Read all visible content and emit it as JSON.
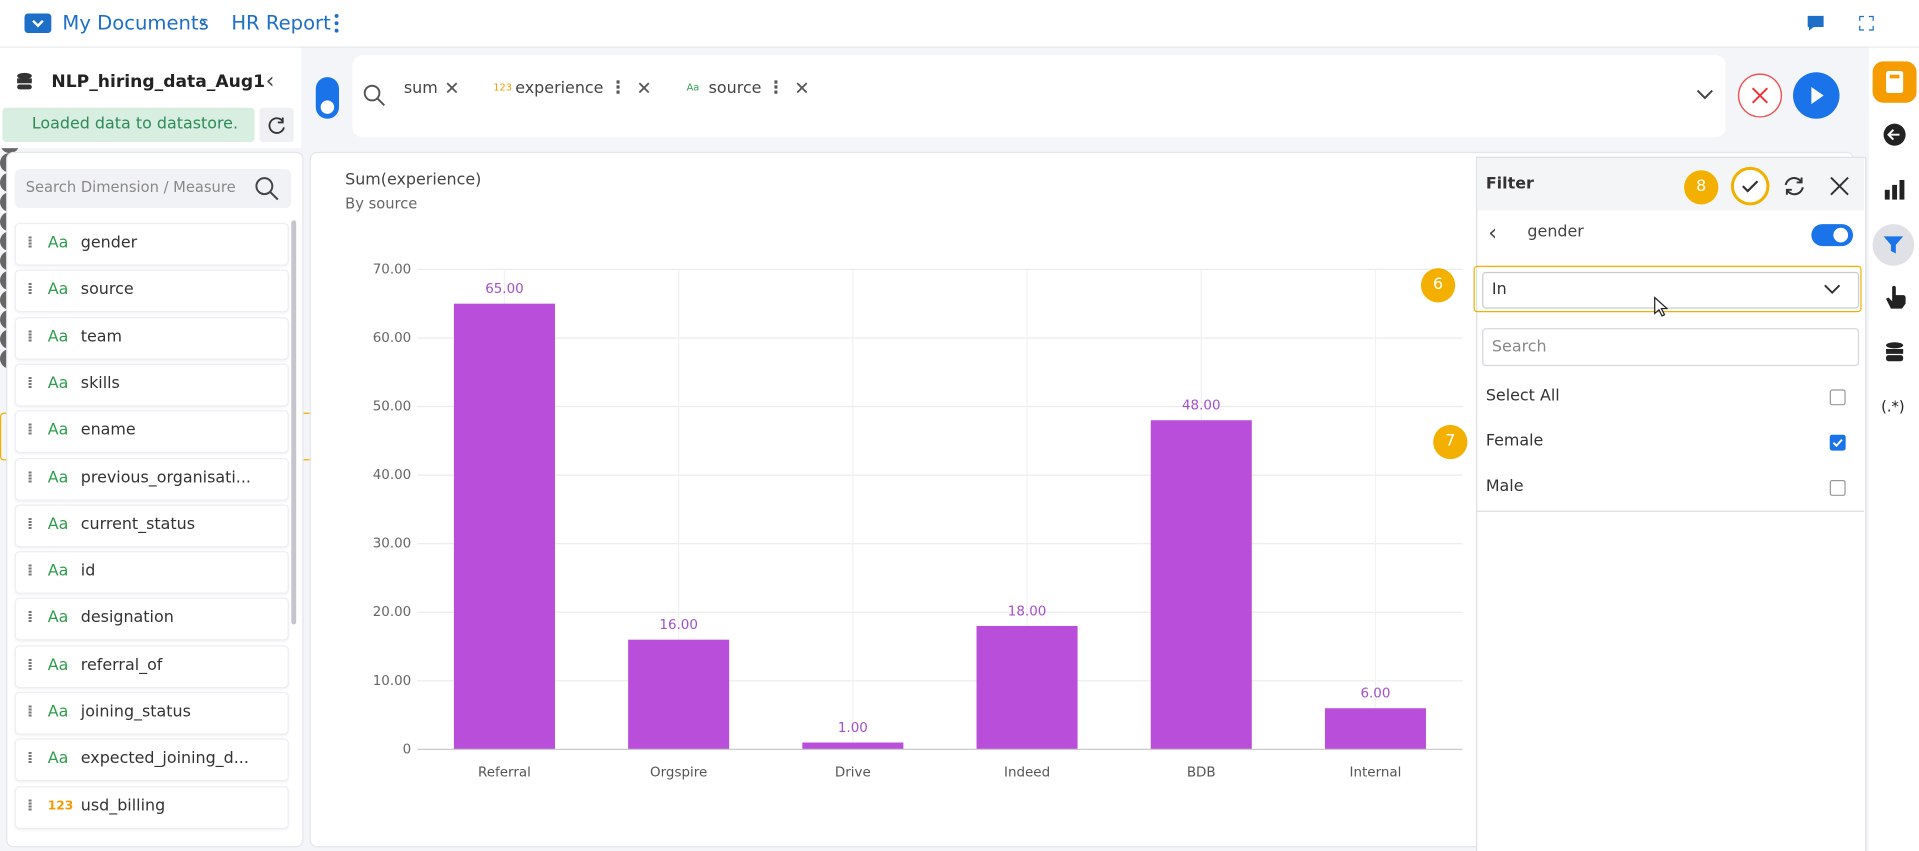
{
  "breadcrumb": {
    "root": "My Documents",
    "report": "HR Report"
  },
  "dataset": {
    "name": "NLP_hiring_data_Aug1",
    "status": "Loaded data to datastore."
  },
  "query_chips": [
    {
      "label": "sum"
    },
    {
      "icon": "123",
      "label": "experience"
    },
    {
      "icon": "Aa",
      "label": "source"
    }
  ],
  "field_search_placeholder": "Search Dimension / Measure",
  "fields": [
    {
      "type": "Aa",
      "name": "gender"
    },
    {
      "type": "Aa",
      "name": "source"
    },
    {
      "type": "Aa",
      "name": "team"
    },
    {
      "type": "Aa",
      "name": "skills"
    },
    {
      "type": "Aa",
      "name": "ename"
    },
    {
      "type": "Aa",
      "name": "previous_organisati..."
    },
    {
      "type": "Aa",
      "name": "current_status"
    },
    {
      "type": "Aa",
      "name": "id"
    },
    {
      "type": "Aa",
      "name": "designation"
    },
    {
      "type": "Aa",
      "name": "referral_of"
    },
    {
      "type": "Aa",
      "name": "joining_status"
    },
    {
      "type": "Aa",
      "name": "expected_joining_d..."
    },
    {
      "type": "123",
      "name": "usd_billing"
    }
  ],
  "chart_data": {
    "type": "bar",
    "title": "Sum(experience)",
    "subtitle": "By source",
    "categories": [
      "Referral",
      "Orgspire",
      "Drive",
      "Indeed",
      "BDB",
      "Internal"
    ],
    "values": [
      65,
      16,
      1,
      18,
      48,
      6
    ],
    "value_labels": [
      "65.00",
      "16.00",
      "1.00",
      "18.00",
      "48.00",
      "6.00"
    ],
    "color": "#b84ed9",
    "ylim": [
      0,
      70
    ],
    "yticks": [
      0,
      {
        "value": 10,
        "label": "10.00"
      },
      {
        "value": 20,
        "label": "20.00"
      },
      {
        "value": 30,
        "label": "30.00"
      },
      {
        "value": 40,
        "label": "40.00"
      },
      {
        "value": 50,
        "label": "50.00"
      },
      {
        "value": 60,
        "label": "60.00"
      },
      {
        "value": 70,
        "label": "70.00"
      }
    ],
    "grid": true
  },
  "filter": {
    "title": "Filter",
    "field": "gender",
    "operator": "In",
    "search_placeholder": "Search",
    "options": [
      {
        "label": "Select All",
        "checked": false
      },
      {
        "label": "Female",
        "checked": true
      },
      {
        "label": "Male",
        "checked": false
      }
    ]
  },
  "step_badges": {
    "operator": "6",
    "option": "7",
    "apply": "8"
  },
  "sidebar_regex_label": "(.*)"
}
